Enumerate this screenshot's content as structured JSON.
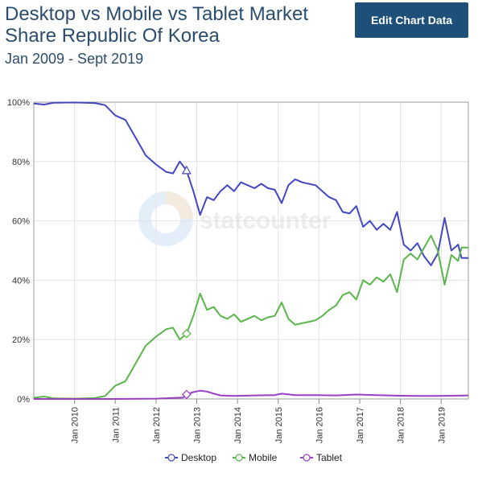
{
  "header": {
    "title": "Desktop vs Mobile vs Tablet Market Share Republic Of Korea",
    "subtitle": "Jan 2009 - Sept 2019",
    "edit_button_label": "Edit Chart Data"
  },
  "watermark": {
    "text": "statcounter"
  },
  "colors": {
    "Desktop": "#4348c2",
    "Mobile": "#5ab54b",
    "Tablet": "#9b3fc7",
    "button_bg": "#1d4f79",
    "title": "#2a4d6e"
  },
  "chart_data": {
    "type": "line",
    "title": "Desktop vs Mobile vs Tablet Market Share Republic Of Korea",
    "subtitle": "Jan 2009 - Sept 2019",
    "x_start": "2009-01",
    "x_end": "2019-09",
    "x_ticks": [
      "Jan 2010",
      "Jan 2011",
      "Jan 2012",
      "Jan 2013",
      "Jan 2014",
      "Jan 2015",
      "Jan 2016",
      "Jan 2017",
      "Jan 2018",
      "Jan 2019"
    ],
    "y_ticks": [
      "0%",
      "20%",
      "40%",
      "60%",
      "80%",
      "100%"
    ],
    "ylim": [
      0,
      100
    ],
    "grid": true,
    "legend_position": "bottom",
    "series": [
      {
        "name": "Desktop",
        "points": [
          [
            "2009-01",
            99.5
          ],
          [
            "2009-04",
            99.2
          ],
          [
            "2009-07",
            99.8
          ],
          [
            "2010-01",
            99.9
          ],
          [
            "2010-07",
            99.7
          ],
          [
            "2010-10",
            99.0
          ],
          [
            "2011-01",
            95.5
          ],
          [
            "2011-04",
            94.0
          ],
          [
            "2011-07",
            88.0
          ],
          [
            "2011-10",
            82.0
          ],
          [
            "2012-01",
            79.0
          ],
          [
            "2012-04",
            76.5
          ],
          [
            "2012-06",
            76.0
          ],
          [
            "2012-08",
            80.0
          ],
          [
            "2012-10",
            77.0
          ],
          [
            "2012-12",
            70.0
          ],
          [
            "2013-02",
            62.0
          ],
          [
            "2013-04",
            68.0
          ],
          [
            "2013-06",
            67.0
          ],
          [
            "2013-08",
            70.0
          ],
          [
            "2013-10",
            72.0
          ],
          [
            "2013-12",
            70.0
          ],
          [
            "2014-02",
            73.0
          ],
          [
            "2014-04",
            72.0
          ],
          [
            "2014-06",
            71.0
          ],
          [
            "2014-08",
            72.5
          ],
          [
            "2014-10",
            71.0
          ],
          [
            "2014-12",
            70.5
          ],
          [
            "2015-02",
            66.0
          ],
          [
            "2015-04",
            72.0
          ],
          [
            "2015-06",
            74.0
          ],
          [
            "2015-08",
            73.0
          ],
          [
            "2015-10",
            72.5
          ],
          [
            "2015-12",
            72.0
          ],
          [
            "2016-02",
            70.0
          ],
          [
            "2016-04",
            68.0
          ],
          [
            "2016-06",
            67.0
          ],
          [
            "2016-08",
            63.0
          ],
          [
            "2016-10",
            62.5
          ],
          [
            "2016-12",
            65.0
          ],
          [
            "2017-02",
            58.0
          ],
          [
            "2017-04",
            60.0
          ],
          [
            "2017-06",
            57.0
          ],
          [
            "2017-08",
            59.0
          ],
          [
            "2017-10",
            57.0
          ],
          [
            "2017-12",
            63.0
          ],
          [
            "2018-02",
            52.0
          ],
          [
            "2018-04",
            50.0
          ],
          [
            "2018-06",
            52.5
          ],
          [
            "2018-08",
            48.0
          ],
          [
            "2018-10",
            45.0
          ],
          [
            "2018-12",
            49.0
          ],
          [
            "2019-02",
            61.0
          ],
          [
            "2019-04",
            50.0
          ],
          [
            "2019-06",
            52.0
          ],
          [
            "2019-07",
            47.5
          ],
          [
            "2019-09",
            47.5
          ]
        ]
      },
      {
        "name": "Mobile",
        "points": [
          [
            "2009-01",
            0.4
          ],
          [
            "2009-04",
            0.8
          ],
          [
            "2009-07",
            0.2
          ],
          [
            "2010-01",
            0.1
          ],
          [
            "2010-07",
            0.3
          ],
          [
            "2010-10",
            1.0
          ],
          [
            "2011-01",
            4.5
          ],
          [
            "2011-04",
            6.0
          ],
          [
            "2011-07",
            12.0
          ],
          [
            "2011-10",
            18.0
          ],
          [
            "2012-01",
            21.0
          ],
          [
            "2012-04",
            23.5
          ],
          [
            "2012-06",
            24.0
          ],
          [
            "2012-08",
            20.0
          ],
          [
            "2012-10",
            22.0
          ],
          [
            "2012-12",
            28.0
          ],
          [
            "2013-02",
            35.5
          ],
          [
            "2013-04",
            30.0
          ],
          [
            "2013-06",
            31.0
          ],
          [
            "2013-08",
            28.0
          ],
          [
            "2013-10",
            27.0
          ],
          [
            "2013-12",
            28.5
          ],
          [
            "2014-02",
            26.0
          ],
          [
            "2014-04",
            27.0
          ],
          [
            "2014-06",
            28.0
          ],
          [
            "2014-08",
            26.5
          ],
          [
            "2014-10",
            27.5
          ],
          [
            "2014-12",
            28.0
          ],
          [
            "2015-02",
            32.5
          ],
          [
            "2015-04",
            27.0
          ],
          [
            "2015-06",
            25.0
          ],
          [
            "2015-08",
            25.5
          ],
          [
            "2015-10",
            26.0
          ],
          [
            "2015-12",
            26.5
          ],
          [
            "2016-02",
            28.0
          ],
          [
            "2016-04",
            30.0
          ],
          [
            "2016-06",
            31.5
          ],
          [
            "2016-08",
            35.0
          ],
          [
            "2016-10",
            36.0
          ],
          [
            "2016-12",
            33.5
          ],
          [
            "2017-02",
            40.0
          ],
          [
            "2017-04",
            38.5
          ],
          [
            "2017-06",
            41.0
          ],
          [
            "2017-08",
            39.5
          ],
          [
            "2017-10",
            42.0
          ],
          [
            "2017-12",
            36.0
          ],
          [
            "2018-02",
            47.0
          ],
          [
            "2018-04",
            49.0
          ],
          [
            "2018-06",
            47.0
          ],
          [
            "2018-08",
            51.0
          ],
          [
            "2018-10",
            55.0
          ],
          [
            "2018-12",
            50.0
          ],
          [
            "2019-02",
            38.5
          ],
          [
            "2019-04",
            48.5
          ],
          [
            "2019-06",
            46.5
          ],
          [
            "2019-07",
            51.0
          ],
          [
            "2019-09",
            51.0
          ]
        ]
      },
      {
        "name": "Tablet",
        "points": [
          [
            "2009-01",
            0.0
          ],
          [
            "2010-01",
            0.0
          ],
          [
            "2011-01",
            0.0
          ],
          [
            "2012-01",
            0.1
          ],
          [
            "2012-09",
            0.5
          ],
          [
            "2012-10",
            1.5
          ],
          [
            "2012-12",
            2.3
          ],
          [
            "2013-02",
            2.8
          ],
          [
            "2013-04",
            2.5
          ],
          [
            "2013-06",
            1.8
          ],
          [
            "2013-08",
            1.2
          ],
          [
            "2013-12",
            1.0
          ],
          [
            "2014-06",
            1.2
          ],
          [
            "2014-12",
            1.3
          ],
          [
            "2015-02",
            1.8
          ],
          [
            "2015-06",
            1.3
          ],
          [
            "2015-12",
            1.3
          ],
          [
            "2016-06",
            1.2
          ],
          [
            "2016-12",
            1.5
          ],
          [
            "2017-06",
            1.3
          ],
          [
            "2017-12",
            1.1
          ],
          [
            "2018-06",
            1.0
          ],
          [
            "2018-12",
            1.0
          ],
          [
            "2019-06",
            1.1
          ],
          [
            "2019-09",
            1.2
          ]
        ]
      }
    ]
  }
}
